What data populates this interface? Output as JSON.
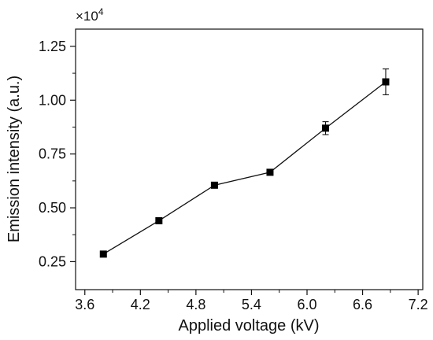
{
  "chart_data": {
    "type": "line",
    "xlabel": "Applied voltage (kV)",
    "ylabel": "Emission intensity (a.u.)",
    "y_multiplier_base": "×10",
    "y_multiplier_exp": "4",
    "xlim": [
      3.5,
      7.25
    ],
    "ylim": [
      0.12,
      1.33
    ],
    "x_ticks": [
      "3.6",
      "4.2",
      "4.8",
      "5.4",
      "6.0",
      "6.6",
      "7.2"
    ],
    "x_tick_values": [
      3.6,
      4.2,
      4.8,
      5.4,
      6.0,
      6.6,
      7.2
    ],
    "y_ticks": [
      "0.25",
      "0.50",
      "0.75",
      "1.00",
      "1.25"
    ],
    "y_tick_values": [
      0.25,
      0.5,
      0.75,
      1.0,
      1.25
    ],
    "grid": false,
    "marker": "square",
    "series": [
      {
        "x": [
          3.8,
          4.4,
          5.0,
          5.6,
          6.2,
          6.85
        ],
        "y": [
          0.285,
          0.44,
          0.605,
          0.665,
          0.87,
          1.085
        ],
        "error": [
          0.012,
          0.0,
          0.0,
          0.0,
          0.03,
          0.06
        ]
      }
    ]
  }
}
